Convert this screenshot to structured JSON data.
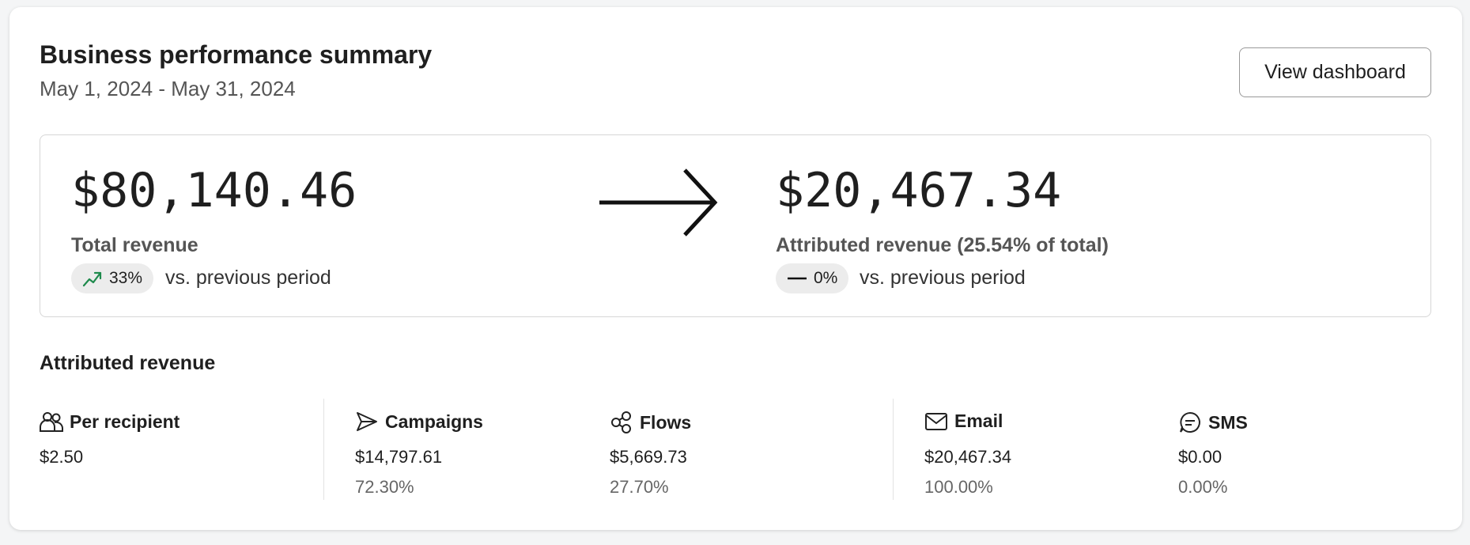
{
  "header": {
    "title": "Business performance summary",
    "date_range": "May 1, 2024 - May 31, 2024",
    "button": "View dashboard"
  },
  "summary": {
    "total": {
      "value": "$80,140.46",
      "label": "Total revenue",
      "change": "33%",
      "comparison": "vs. previous period"
    },
    "attributed": {
      "value": "$20,467.34",
      "label": "Attributed revenue (25.54% of total)",
      "change": "0%",
      "comparison": "vs. previous period"
    }
  },
  "breakdown": {
    "title": "Attributed revenue",
    "metrics": [
      {
        "name": "Per recipient",
        "value": "$2.50"
      },
      {
        "name": "Campaigns",
        "value": "$14,797.61",
        "share": "72.30%"
      },
      {
        "name": "Flows",
        "value": "$5,669.73",
        "share": "27.70%"
      },
      {
        "name": "Email",
        "value": "$20,467.34",
        "share": "100.00%"
      },
      {
        "name": "SMS",
        "value": "$0.00",
        "share": "0.00%"
      }
    ]
  }
}
